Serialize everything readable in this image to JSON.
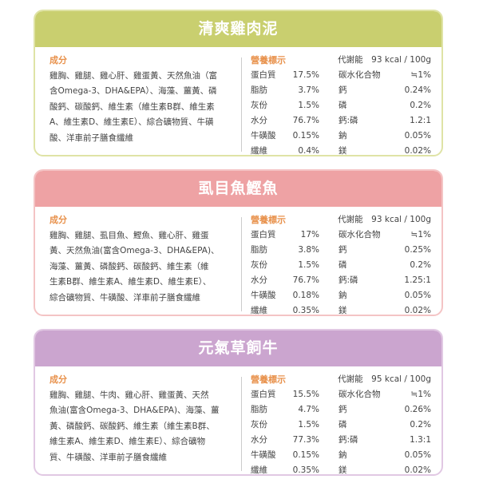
{
  "cards": [
    {
      "title": "清爽雞肉泥",
      "ingredients_label": "成分",
      "ingredients": [
        "雞胸、雞腿、雞心肝、雞蛋黃、天然魚油（富",
        "含Omega-3、DHA&EPA）、海藻、薑黃、磷",
        "酸鈣、碳酸鈣、維生素（維生素B群、維生素",
        "A、維生素D、維生素E）、綜合礦物質、牛磺",
        "酸、洋車前子膳食纖維"
      ],
      "nutrition_label": "營養標示",
      "energy_label": "代謝能",
      "energy": "93 kcal / 100g",
      "rows": [
        [
          "蛋白質",
          "17.5%",
          "碳水化合物",
          "≒1%"
        ],
        [
          "脂肪",
          "3.7%",
          "鈣",
          "0.24%"
        ],
        [
          "灰份",
          "1.5%",
          "磷",
          "0.2%"
        ],
        [
          "水分",
          "76.7%",
          "鈣:磷",
          "1.2:1"
        ],
        [
          "牛磺酸",
          "0.15%",
          "鈉",
          "0.05%"
        ],
        [
          "纖維",
          "0.4%",
          "鎂",
          "0.02%"
        ]
      ]
    },
    {
      "title": "虱目魚鰹魚",
      "ingredients_label": "成分",
      "ingredients": [
        "雞胸、雞腿、虱目魚、鰹魚、雞心肝、雞蛋",
        "黃、天然魚油(富含Omega-3、DHA&EPA)、",
        "海藻、薑黃、磷酸鈣、碳酸鈣、維生素（維",
        "生素B群、維生素A、維生素D、維生素E）、",
        "綜合礦物質、牛磺酸、洋車前子膳食纖維"
      ],
      "nutrition_label": "營養標示",
      "energy_label": "代謝能",
      "energy": "93 kcal / 100g",
      "rows": [
        [
          "蛋白質",
          "17%",
          "碳水化合物",
          "≒1%"
        ],
        [
          "脂肪",
          "3.8%",
          "鈣",
          "0.25%"
        ],
        [
          "灰份",
          "1.5%",
          "磷",
          "0.2%"
        ],
        [
          "水分",
          "76.7%",
          "鈣:磷",
          "1.25:1"
        ],
        [
          "牛磺酸",
          "0.18%",
          "鈉",
          "0.05%"
        ],
        [
          "纖維",
          "0.35%",
          "鎂",
          "0.02%"
        ]
      ]
    },
    {
      "title": "元氣草飼牛",
      "ingredients_label": "成分",
      "ingredients": [
        "雞胸、雞腿、牛肉、雞心肝、雞蛋黃、天然",
        "魚油(富含Omega-3、DHA&EPA)、海藻、薑",
        "黃、磷酸鈣、碳酸鈣、維生素（維生素B群、",
        "維生素A、維生素D、維生素E）、綜合礦物",
        "質、牛磺酸、洋車前子膳食纖維"
      ],
      "nutrition_label": "營養標示",
      "energy_label": "代謝能",
      "energy": "95 kcal / 100g",
      "rows": [
        [
          "蛋白質",
          "15.5%",
          "碳水化合物",
          "≒1%"
        ],
        [
          "脂肪",
          "4.7%",
          "鈣",
          "0.26%"
        ],
        [
          "灰份",
          "1.5%",
          "磷",
          "0.2%"
        ],
        [
          "水分",
          "77.3%",
          "鈣:磷",
          "1.3:1"
        ],
        [
          "牛磺酸",
          "0.15%",
          "鈉",
          "0.05%"
        ],
        [
          "纖維",
          "0.35%",
          "鎂",
          "0.02%"
        ]
      ]
    }
  ]
}
